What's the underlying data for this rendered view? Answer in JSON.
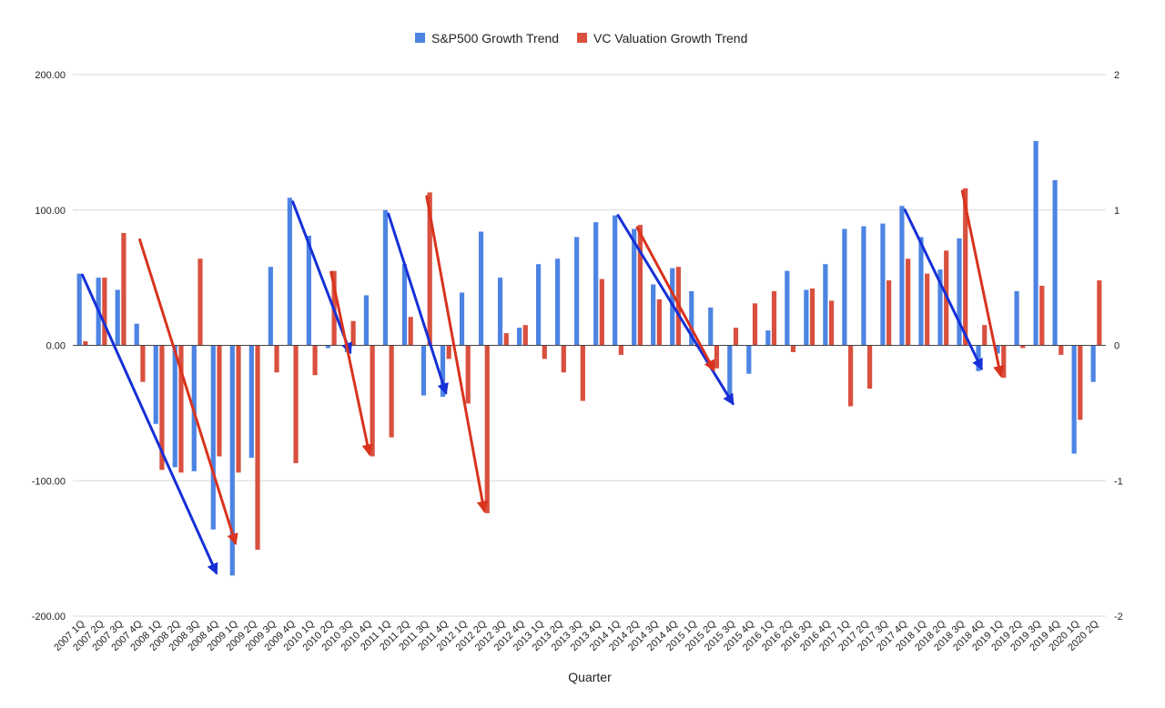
{
  "chart_data": {
    "type": "bar",
    "xlabel": "Quarter",
    "ylim": [
      -200,
      200
    ],
    "y2lim": [
      -2,
      2
    ],
    "yticks": [
      "200.00",
      "100.00",
      "0.00",
      "-100.00",
      "-200.00"
    ],
    "y2ticks": [
      "2",
      "1",
      "0",
      "-1",
      "-2"
    ],
    "grid": true,
    "legend_position": "top",
    "categories": [
      "2007 1Q",
      "2007 2Q",
      "2007 3Q",
      "2007 4Q",
      "2008 1Q",
      "2008 2Q",
      "2008 3Q",
      "2008 4Q",
      "2009 1Q",
      "2009 2Q",
      "2009 3Q",
      "2009 4Q",
      "2010 1Q",
      "2010 2Q",
      "2010 3Q",
      "2010 4Q",
      "2011 1Q",
      "2011 2Q",
      "2011 3Q",
      "2011 4Q",
      "2012 1Q",
      "2012 2Q",
      "2012 3Q",
      "2012 4Q",
      "2013 1Q",
      "2013 2Q",
      "2013 3Q",
      "2013 4Q",
      "2014 1Q",
      "2014 2Q",
      "2014 3Q",
      "2014 4Q",
      "2015 1Q",
      "2015 2Q",
      "2015 3Q",
      "2015 4Q",
      "2016 1Q",
      "2016 2Q",
      "2016 3Q",
      "2016 4Q",
      "2017 1Q",
      "2017 2Q",
      "2017 3Q",
      "2017 4Q",
      "2018 1Q",
      "2018 2Q",
      "2018 3Q",
      "2018 4Q",
      "2019 1Q",
      "2019 2Q",
      "2019 3Q",
      "2019 4Q",
      "2020 1Q",
      "2020 2Q"
    ],
    "series": [
      {
        "name": "S&P500 Growth Trend",
        "color": "#4d84e3",
        "values": [
          53,
          50,
          41,
          16,
          -58,
          -90,
          -93,
          -136,
          -170,
          -83,
          58,
          109,
          81,
          -2,
          -5,
          37,
          100,
          60,
          -37,
          -38,
          39,
          84,
          50,
          13,
          60,
          64,
          80,
          91,
          96,
          86,
          45,
          57,
          40,
          28,
          -41,
          -21,
          11,
          55,
          41,
          60,
          86,
          88,
          90,
          103,
          80,
          56,
          79,
          -19,
          -6,
          40,
          151,
          122,
          -80,
          -27
        ]
      },
      {
        "name": "VC Valuation Growth Trend",
        "color": "#d9503f",
        "values": [
          3,
          50,
          83,
          -27,
          -92,
          -94,
          64,
          -82,
          -94,
          -151,
          -20,
          -87,
          -22,
          55,
          18,
          -82,
          -68,
          21,
          113,
          -10,
          -43,
          -124,
          9,
          15,
          -10,
          -20,
          -41,
          49,
          -7,
          89,
          34,
          58,
          -1,
          -17,
          13,
          31,
          40,
          -5,
          42,
          33,
          -45,
          -32,
          48,
          64,
          53,
          70,
          116,
          15,
          -24,
          -2,
          44,
          -7,
          -55,
          48
        ]
      }
    ],
    "annotation_arrows": [
      {
        "color": "#1630d6",
        "from": [
          "2007 1Q",
          52
        ],
        "to": [
          "2008 4Q",
          -168
        ]
      },
      {
        "color": "#1630d6",
        "from": [
          "2009 4Q",
          106
        ],
        "to": [
          "2010 3Q",
          -5
        ]
      },
      {
        "color": "#1630d6",
        "from": [
          "2011 1Q",
          97
        ],
        "to": [
          "2011 4Q",
          -35
        ]
      },
      {
        "color": "#1630d6",
        "from": [
          "2014 1Q",
          96
        ],
        "to": [
          "2015 3Q",
          -43
        ]
      },
      {
        "color": "#1630d6",
        "from": [
          "2017 4Q",
          100
        ],
        "to": [
          "2018 4Q",
          -17
        ]
      },
      {
        "color": "#d9331e",
        "from": [
          "2007 4Q",
          78
        ],
        "to": [
          "2009 1Q",
          -146
        ]
      },
      {
        "color": "#d9331e",
        "from": [
          "2010 2Q",
          54
        ],
        "to": [
          "2010 4Q",
          -80
        ]
      },
      {
        "color": "#d9331e",
        "from": [
          "2011 3Q",
          110
        ],
        "to": [
          "2012 2Q",
          -122
        ]
      },
      {
        "color": "#d9331e",
        "from": [
          "2014 2Q",
          87
        ],
        "to": [
          "2015 2Q",
          -18
        ]
      },
      {
        "color": "#d9331e",
        "from": [
          "2018 3Q",
          114
        ],
        "to": [
          "2019 1Q",
          -22
        ]
      }
    ]
  }
}
